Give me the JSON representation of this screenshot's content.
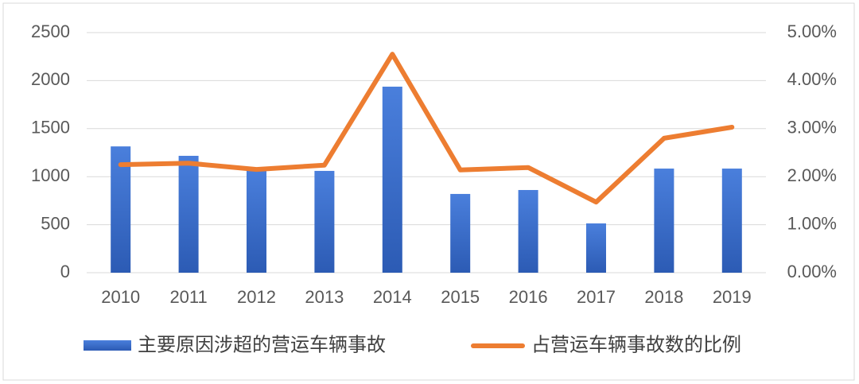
{
  "chart_data": {
    "type": "bar-line",
    "categories": [
      "2010",
      "2011",
      "2012",
      "2013",
      "2014",
      "2015",
      "2016",
      "2017",
      "2018",
      "2019"
    ],
    "series": [
      {
        "name": "主要原因涉超的营运车辆事故",
        "type": "bar",
        "color": "#3a6cc9",
        "values": [
          1315,
          1217,
          1076,
          1060,
          1937,
          820,
          861,
          513,
          1084,
          1084
        ]
      },
      {
        "name": "占营运车辆事故数的比例",
        "type": "line",
        "axis": "y2",
        "color": "#ed7d31",
        "values": [
          2.25,
          2.28,
          2.15,
          2.24,
          4.55,
          2.14,
          2.19,
          1.47,
          2.8,
          3.03
        ]
      }
    ],
    "ylim": [
      0,
      2500
    ],
    "yticks": [
      0,
      500,
      1000,
      1500,
      2000,
      2500
    ],
    "y2lim": [
      0,
      5
    ],
    "y2ticks": [
      {
        "value": 0,
        "label": "0.00%"
      },
      {
        "value": 1,
        "label": "1.00%"
      },
      {
        "value": 2,
        "label": "2.00%"
      },
      {
        "value": 3,
        "label": "3.00%"
      },
      {
        "value": 4,
        "label": "4.00%"
      },
      {
        "value": 5,
        "label": "5.00%"
      }
    ],
    "grid": true
  }
}
